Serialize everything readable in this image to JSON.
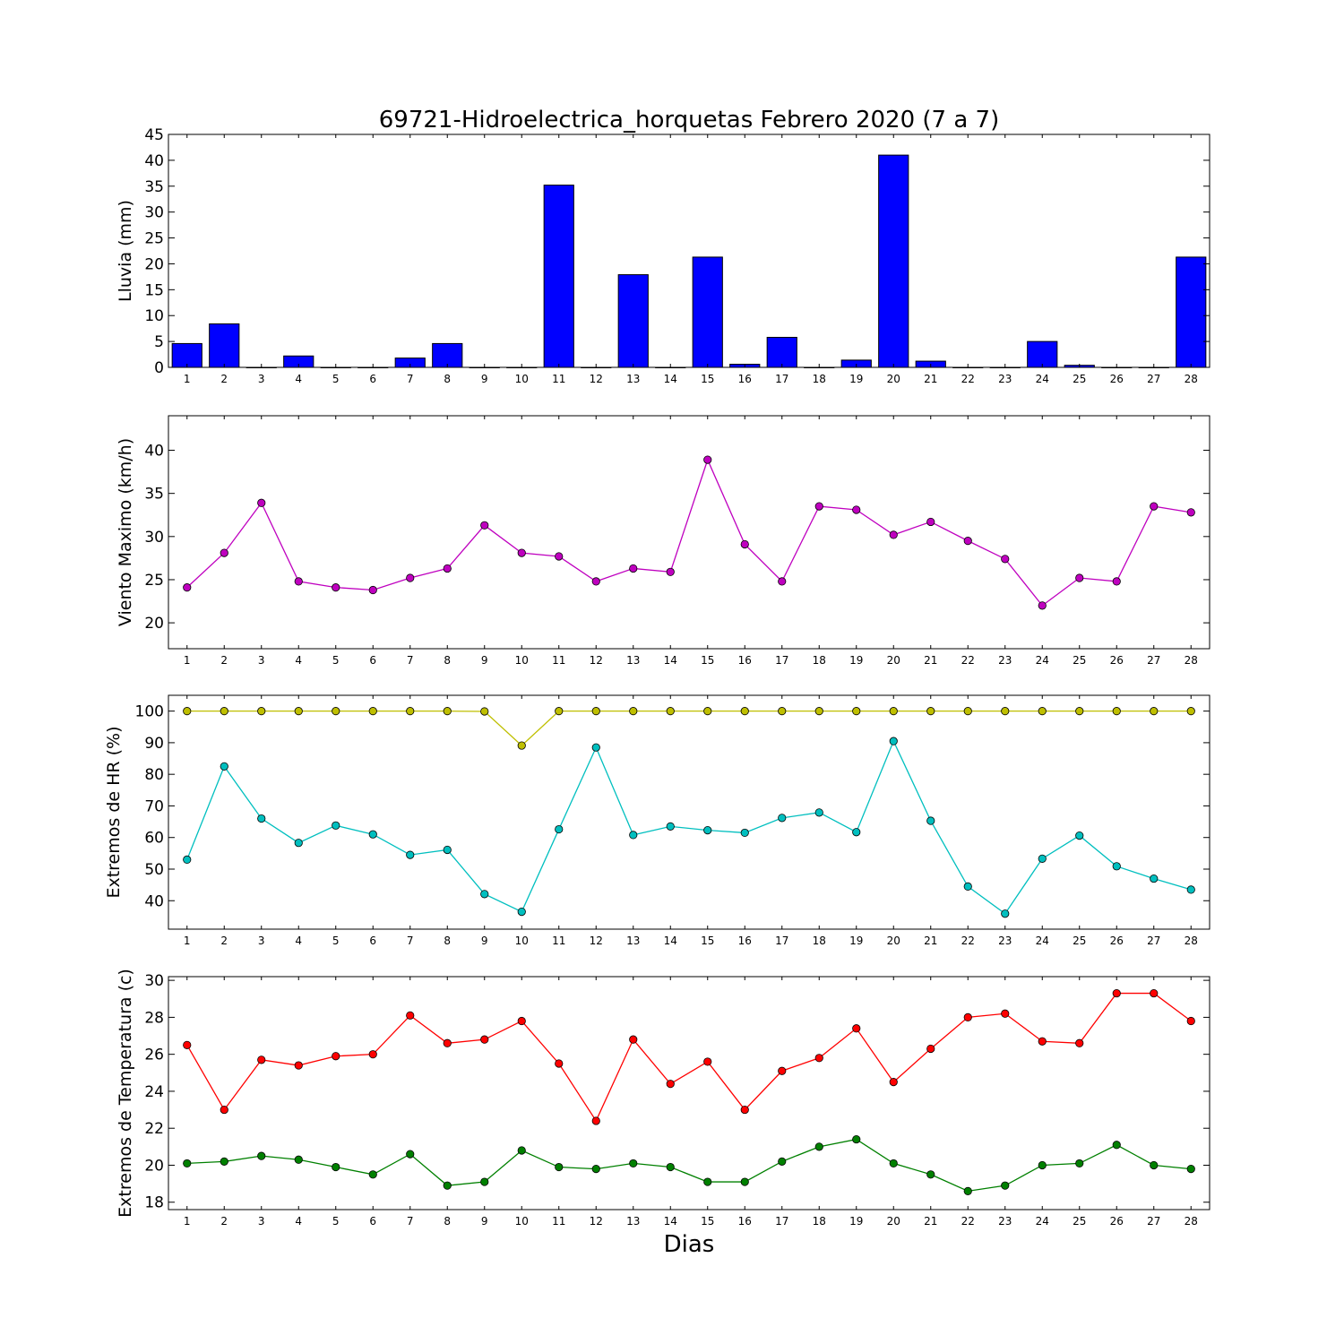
{
  "chart_data": [
    {
      "type": "bar",
      "title": "69721-Hidroelectrica_horquetas Febrero 2020  (7 a 7)",
      "ylabel": "Lluvia (mm)",
      "xlabel": "",
      "ylim": [
        0,
        45
      ],
      "yticks": [
        0,
        5,
        10,
        15,
        20,
        25,
        30,
        35,
        40,
        45
      ],
      "categories": [
        "1",
        "2",
        "3",
        "4",
        "5",
        "6",
        "7",
        "8",
        "9",
        "10",
        "11",
        "12",
        "13",
        "14",
        "15",
        "16",
        "17",
        "18",
        "19",
        "20",
        "21",
        "22",
        "23",
        "24",
        "25",
        "26",
        "27",
        "28"
      ],
      "series": [
        {
          "color": "#0000ff",
          "values": [
            4.6,
            8.4,
            0,
            2.2,
            0,
            0,
            1.8,
            4.6,
            0,
            0,
            35.2,
            0,
            17.9,
            0,
            21.3,
            0.6,
            5.8,
            0,
            1.4,
            41.0,
            1.2,
            0,
            0,
            5.0,
            0.4,
            0,
            0,
            21.3
          ]
        }
      ]
    },
    {
      "type": "line",
      "title": "",
      "ylabel": "Viento Maximo (km/h)",
      "xlabel": "",
      "ylim": [
        17,
        44
      ],
      "yticks": [
        20,
        25,
        30,
        35,
        40
      ],
      "categories": [
        "1",
        "2",
        "3",
        "4",
        "5",
        "6",
        "7",
        "8",
        "9",
        "10",
        "11",
        "12",
        "13",
        "14",
        "15",
        "16",
        "17",
        "18",
        "19",
        "20",
        "21",
        "22",
        "23",
        "24",
        "25",
        "26",
        "27",
        "28"
      ],
      "series": [
        {
          "color": "#bf00bf",
          "values": [
            24.1,
            28.1,
            33.9,
            24.8,
            24.1,
            23.8,
            25.2,
            26.3,
            31.3,
            28.1,
            27.7,
            24.8,
            26.3,
            25.9,
            38.9,
            29.1,
            24.8,
            33.5,
            33.1,
            30.2,
            31.7,
            29.5,
            27.4,
            22.0,
            25.2,
            24.8,
            33.5,
            32.8
          ]
        }
      ]
    },
    {
      "type": "line",
      "title": "",
      "ylabel": "Extremos de HR (%)",
      "xlabel": "",
      "ylim": [
        31,
        105
      ],
      "yticks": [
        40,
        50,
        60,
        70,
        80,
        90,
        100
      ],
      "categories": [
        "1",
        "2",
        "3",
        "4",
        "5",
        "6",
        "7",
        "8",
        "9",
        "10",
        "11",
        "12",
        "13",
        "14",
        "15",
        "16",
        "17",
        "18",
        "19",
        "20",
        "21",
        "22",
        "23",
        "24",
        "25",
        "26",
        "27",
        "28"
      ],
      "series": [
        {
          "color": "#bfbf00",
          "values": [
            100,
            100,
            100,
            100,
            100,
            100,
            100,
            100,
            99.9,
            89.1,
            100,
            100,
            100,
            100,
            100,
            100,
            100,
            100,
            100,
            100,
            100,
            100,
            100,
            100,
            100,
            100,
            100,
            100
          ]
        },
        {
          "color": "#00bfbf",
          "values": [
            53.0,
            82.5,
            66.0,
            58.3,
            63.8,
            61.0,
            54.5,
            56.1,
            42.1,
            36.5,
            62.6,
            88.5,
            60.8,
            63.5,
            62.3,
            61.5,
            66.2,
            67.9,
            61.7,
            90.5,
            65.3,
            44.5,
            35.9,
            53.3,
            60.6,
            50.9,
            47.0,
            43.5
          ]
        }
      ]
    },
    {
      "type": "line",
      "title": "",
      "ylabel": "Extremos de Temperatura (c)",
      "xlabel": "Dias",
      "ylim": [
        17.6,
        30.2
      ],
      "yticks": [
        18,
        20,
        22,
        24,
        26,
        28,
        30
      ],
      "categories": [
        "1",
        "2",
        "3",
        "4",
        "5",
        "6",
        "7",
        "8",
        "9",
        "10",
        "11",
        "12",
        "13",
        "14",
        "15",
        "16",
        "17",
        "18",
        "19",
        "20",
        "21",
        "22",
        "23",
        "24",
        "25",
        "26",
        "27",
        "28"
      ],
      "series": [
        {
          "color": "#ff0000",
          "values": [
            26.5,
            23.0,
            25.7,
            25.4,
            25.9,
            26.0,
            28.1,
            26.6,
            26.8,
            27.8,
            25.5,
            22.4,
            26.8,
            24.4,
            25.6,
            23.0,
            25.1,
            25.8,
            27.4,
            24.5,
            26.3,
            28.0,
            28.2,
            26.7,
            26.6,
            29.3,
            29.3,
            27.8
          ]
        },
        {
          "color": "#008000",
          "values": [
            20.1,
            20.2,
            20.5,
            20.3,
            19.9,
            19.5,
            20.6,
            18.9,
            19.1,
            20.8,
            19.9,
            19.8,
            20.1,
            19.9,
            19.1,
            19.1,
            20.2,
            21.0,
            21.4,
            20.1,
            19.5,
            18.6,
            18.9,
            20.0,
            20.1,
            21.1,
            20.0,
            19.8
          ]
        }
      ]
    }
  ]
}
